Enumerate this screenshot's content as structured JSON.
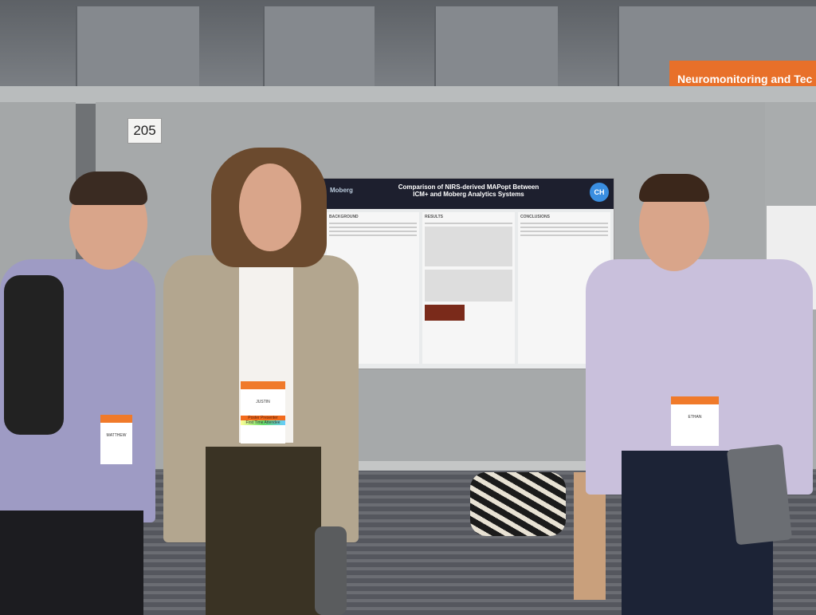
{
  "booth": {
    "number": "205",
    "sign": "Neuromonitoring and Tec"
  },
  "poster": {
    "title_line1": "Comparison of NIRS-derived MAPopt Between",
    "title_line2": "ICM+ and Moberg Analytics Systems",
    "logo": "Moberg",
    "logo_right": "CH",
    "sections": [
      "BACKGROUND",
      "RESULTS",
      "CONCLUSIONS"
    ]
  },
  "badges": [
    {
      "name": "MATTHEW"
    },
    {
      "name": "JUSTIN",
      "ribbon1": "Poster Presenter",
      "ribbon2": "First Time Attendee"
    },
    {
      "name": "ETHAN"
    }
  ]
}
